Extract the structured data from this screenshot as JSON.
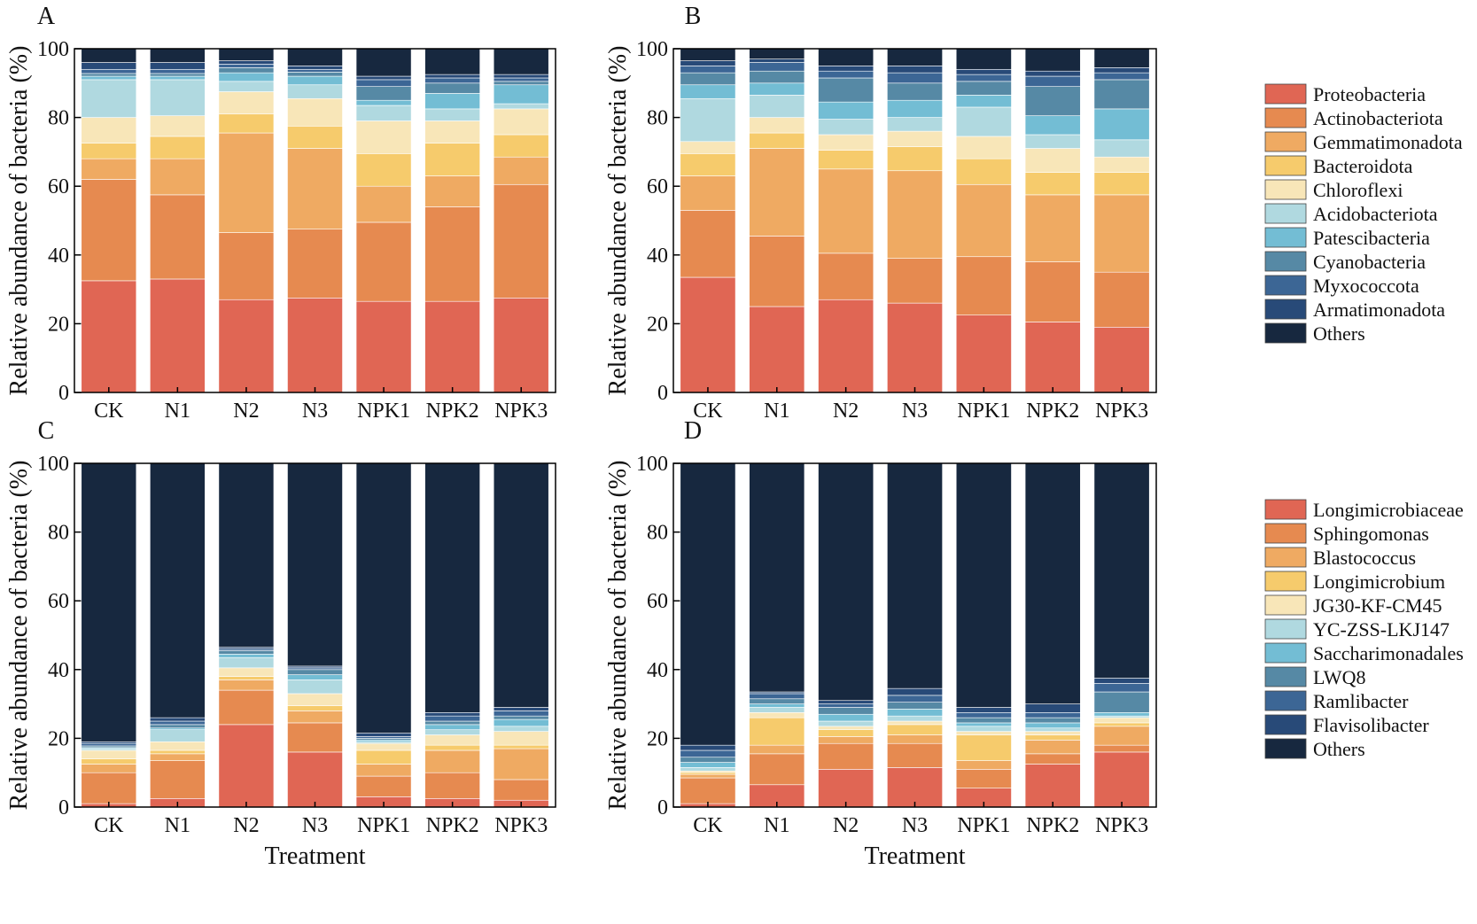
{
  "xlabel": "Treatment",
  "ylabel": "Relative abundance of bacteria (%)",
  "yticks": [
    "0",
    "20",
    "40",
    "60",
    "80",
    "100"
  ],
  "categories": [
    "CK",
    "N1",
    "N2",
    "N3",
    "NPK1",
    "NPK2",
    "NPK3"
  ],
  "legend_phylum": {
    "names": [
      "Proteobacteria",
      "Actinobacteriota",
      "Gemmatimonadota",
      "Bacteroidota",
      "Chloroflexi",
      "Acidobacteriota",
      "Patescibacteria",
      "Cyanobacteria",
      "Myxococcota",
      "Armatimonadota",
      "Others"
    ],
    "colors": [
      "#E06654",
      "#E68A50",
      "#EFAA62",
      "#F6CB6C",
      "#F8E6B8",
      "#B0D9E0",
      "#73BDD4",
      "#5689A5",
      "#3C6695",
      "#284A78",
      "#17283F"
    ]
  },
  "legend_genus": {
    "names": [
      "Longimicrobiaceae",
      "Sphingomonas",
      "Blastococcus",
      "Longimicrobium",
      "JG30-KF-CM45",
      "YC-ZSS-LKJ147",
      "Saccharimonadales",
      "LWQ8",
      "Ramlibacter",
      "Flavisolibacter",
      "Others"
    ],
    "colors": [
      "#E06654",
      "#E68A50",
      "#EFAA62",
      "#F6CB6C",
      "#F8E6B8",
      "#B0D9E0",
      "#73BDD4",
      "#5689A5",
      "#3C6695",
      "#284A78",
      "#17283F"
    ]
  },
  "chart_data": [
    {
      "panel": "A",
      "type": "bar",
      "stacked": true,
      "ylim": [
        0,
        100
      ],
      "xlabel": "",
      "ylabel": "Relative abundance of bacteria (%)",
      "categories": [
        "CK",
        "N1",
        "N2",
        "N3",
        "NPK1",
        "NPK2",
        "NPK3"
      ],
      "legend": "legend_phylum",
      "series": [
        {
          "name": "Proteobacteria",
          "values": [
            32.5,
            33.0,
            27.0,
            27.5,
            26.5,
            26.5,
            27.5
          ]
        },
        {
          "name": "Actinobacteriota",
          "values": [
            29.5,
            24.5,
            19.5,
            20.0,
            23.0,
            27.5,
            33.0
          ]
        },
        {
          "name": "Gemmatimonadota",
          "values": [
            6.0,
            10.5,
            29.0,
            23.5,
            10.5,
            9.0,
            8.0
          ]
        },
        {
          "name": "Bacteroidota",
          "values": [
            4.5,
            6.5,
            5.5,
            6.5,
            9.5,
            9.5,
            6.5
          ]
        },
        {
          "name": "Chloroflexi",
          "values": [
            7.5,
            6.0,
            6.5,
            8.0,
            9.5,
            6.5,
            7.5
          ]
        },
        {
          "name": "Acidobacteriota",
          "values": [
            11.0,
            10.5,
            3.0,
            4.0,
            4.5,
            3.5,
            1.5
          ]
        },
        {
          "name": "Patescibacteria",
          "values": [
            1.0,
            1.0,
            2.5,
            2.5,
            1.5,
            4.5,
            5.5
          ]
        },
        {
          "name": "Cyanobacteria",
          "values": [
            0.8,
            0.8,
            1.5,
            1.2,
            4.0,
            3.0,
            1.0
          ]
        },
        {
          "name": "Myxococcota",
          "values": [
            1.2,
            1.2,
            1.0,
            0.8,
            2.0,
            1.5,
            1.0
          ]
        },
        {
          "name": "Armatimonadota",
          "values": [
            2.0,
            2.0,
            1.0,
            1.0,
            1.0,
            1.0,
            1.0
          ]
        },
        {
          "name": "Others",
          "values": [
            4.0,
            4.0,
            3.5,
            5.0,
            8.0,
            7.5,
            7.5
          ]
        }
      ]
    },
    {
      "panel": "B",
      "type": "bar",
      "stacked": true,
      "ylim": [
        0,
        100
      ],
      "xlabel": "",
      "ylabel": "Relative abundance of bacteria (%)",
      "categories": [
        "CK",
        "N1",
        "N2",
        "N3",
        "NPK1",
        "NPK2",
        "NPK3"
      ],
      "legend": "legend_phylum",
      "series": [
        {
          "name": "Proteobacteria",
          "values": [
            33.5,
            25.0,
            27.0,
            26.0,
            22.5,
            20.5,
            19.0
          ]
        },
        {
          "name": "Actinobacteriota",
          "values": [
            19.5,
            20.5,
            13.5,
            13.0,
            17.0,
            17.5,
            16.0
          ]
        },
        {
          "name": "Gemmatimonadota",
          "values": [
            10.0,
            25.5,
            24.5,
            25.5,
            21.0,
            19.5,
            22.5
          ]
        },
        {
          "name": "Bacteroidota",
          "values": [
            6.5,
            4.5,
            5.5,
            7.0,
            7.5,
            6.5,
            6.5
          ]
        },
        {
          "name": "Chloroflexi",
          "values": [
            3.5,
            4.5,
            4.5,
            4.5,
            6.5,
            7.0,
            4.5
          ]
        },
        {
          "name": "Acidobacteriota",
          "values": [
            12.5,
            6.5,
            4.5,
            4.0,
            8.5,
            4.0,
            5.0
          ]
        },
        {
          "name": "Patescibacteria",
          "values": [
            4.0,
            3.5,
            5.0,
            5.0,
            3.5,
            5.5,
            9.0
          ]
        },
        {
          "name": "Cyanobacteria",
          "values": [
            3.5,
            3.5,
            7.0,
            5.0,
            4.0,
            8.5,
            8.5
          ]
        },
        {
          "name": "Myxococcota",
          "values": [
            2.0,
            2.5,
            2.0,
            3.0,
            2.0,
            3.0,
            2.0
          ]
        },
        {
          "name": "Armatimonadota",
          "values": [
            1.5,
            1.0,
            1.5,
            2.0,
            1.5,
            1.5,
            1.5
          ]
        },
        {
          "name": "Others",
          "values": [
            3.5,
            3.0,
            5.0,
            5.0,
            6.0,
            6.5,
            5.5
          ]
        }
      ]
    },
    {
      "panel": "C",
      "type": "bar",
      "stacked": true,
      "ylim": [
        0,
        100
      ],
      "xlabel": "Treatment",
      "ylabel": "Relative abundance of bacteria (%)",
      "categories": [
        "CK",
        "N1",
        "N2",
        "N3",
        "NPK1",
        "NPK2",
        "NPK3"
      ],
      "legend": "legend_genus",
      "series": [
        {
          "name": "Longimicrobiaceae",
          "values": [
            1.0,
            2.5,
            24.0,
            16.0,
            3.0,
            2.5,
            2.0
          ]
        },
        {
          "name": "Sphingomonas",
          "values": [
            9.0,
            11.0,
            10.0,
            8.5,
            6.0,
            7.5,
            6.0
          ]
        },
        {
          "name": "Blastococcus",
          "values": [
            2.5,
            2.0,
            3.0,
            3.5,
            3.5,
            6.5,
            9.0
          ]
        },
        {
          "name": "Longimicrobium",
          "values": [
            1.5,
            1.0,
            1.0,
            1.5,
            4.0,
            1.5,
            1.0
          ]
        },
        {
          "name": "JG30-KF-CM45",
          "values": [
            2.5,
            2.5,
            2.5,
            3.5,
            2.0,
            3.0,
            4.0
          ]
        },
        {
          "name": "YC-ZSS-LKJ147",
          "values": [
            0.5,
            3.5,
            3.0,
            4.0,
            0.5,
            1.5,
            1.5
          ]
        },
        {
          "name": "Saccharimonadales",
          "values": [
            0.3,
            0.5,
            1.0,
            1.5,
            0.5,
            1.5,
            2.0
          ]
        },
        {
          "name": "LWQ8",
          "values": [
            0.5,
            1.0,
            1.0,
            1.5,
            0.5,
            1.0,
            1.0
          ]
        },
        {
          "name": "Ramlibacter",
          "values": [
            0.7,
            1.0,
            0.5,
            0.5,
            0.5,
            1.5,
            1.5
          ]
        },
        {
          "name": "Flavisolibacter",
          "values": [
            0.5,
            1.0,
            0.5,
            0.5,
            1.0,
            1.0,
            1.0
          ]
        },
        {
          "name": "Others",
          "values": [
            81.0,
            74.0,
            53.5,
            59.5,
            78.5,
            72.5,
            71.0
          ]
        }
      ]
    },
    {
      "panel": "D",
      "type": "bar",
      "stacked": true,
      "ylim": [
        0,
        100
      ],
      "xlabel": "Treatment",
      "ylabel": "Relative abundance of bacteria (%)",
      "categories": [
        "CK",
        "N1",
        "N2",
        "N3",
        "NPK1",
        "NPK2",
        "NPK3"
      ],
      "legend": "legend_genus",
      "series": [
        {
          "name": "Longimicrobiaceae",
          "values": [
            1.0,
            6.5,
            11.0,
            11.5,
            5.5,
            12.5,
            16.0
          ]
        },
        {
          "name": "Sphingomonas",
          "values": [
            7.5,
            9.0,
            7.5,
            7.0,
            5.5,
            3.0,
            2.0
          ]
        },
        {
          "name": "Blastococcus",
          "values": [
            1.0,
            2.5,
            2.0,
            2.5,
            2.5,
            4.0,
            5.5
          ]
        },
        {
          "name": "Longimicrobium",
          "values": [
            0.5,
            8.0,
            2.0,
            3.0,
            7.5,
            1.5,
            1.0
          ]
        },
        {
          "name": "JG30-KF-CM45",
          "values": [
            0.5,
            1.5,
            1.0,
            1.0,
            1.0,
            1.0,
            1.5
          ]
        },
        {
          "name": "YC-ZSS-LKJ147",
          "values": [
            1.0,
            1.5,
            1.5,
            1.5,
            1.5,
            1.0,
            0.5
          ]
        },
        {
          "name": "Saccharimonadales",
          "values": [
            1.5,
            1.0,
            2.0,
            2.0,
            1.0,
            1.5,
            1.0
          ]
        },
        {
          "name": "LWQ8",
          "values": [
            1.5,
            1.5,
            2.0,
            2.0,
            1.5,
            1.5,
            6.0
          ]
        },
        {
          "name": "Ramlibacter",
          "values": [
            2.0,
            1.5,
            1.0,
            2.0,
            1.5,
            1.5,
            2.5
          ]
        },
        {
          "name": "Flavisolibacter",
          "values": [
            1.5,
            0.5,
            1.0,
            2.0,
            1.5,
            2.5,
            1.5
          ]
        },
        {
          "name": "Others",
          "values": [
            82.0,
            66.5,
            69.0,
            65.5,
            71.5,
            70.0,
            62.5
          ]
        }
      ]
    }
  ]
}
